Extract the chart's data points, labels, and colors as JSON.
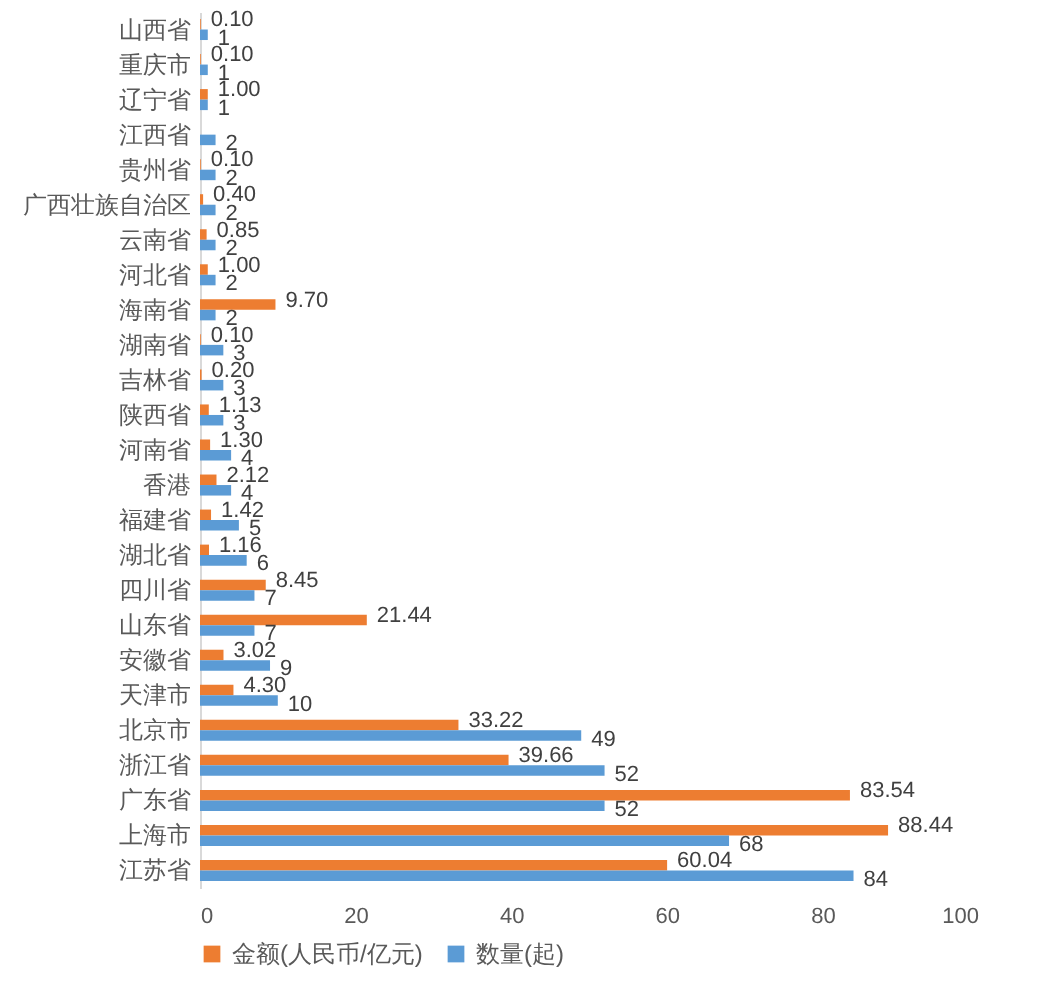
{
  "chart_data": {
    "type": "bar",
    "orientation": "horizontal",
    "categories": [
      "山西省",
      "重庆市",
      "辽宁省",
      "江西省",
      "贵州省",
      "广西壮族自治区",
      "云南省",
      "河北省",
      "海南省",
      "湖南省",
      "吉林省",
      "陕西省",
      "河南省",
      "香港",
      "福建省",
      "湖北省",
      "四川省",
      "山东省",
      "安徽省",
      "天津市",
      "北京市",
      "浙江省",
      "广东省",
      "上海市",
      "江苏省"
    ],
    "series": [
      {
        "name": "金额(人民币/亿元)",
        "color": "#ed7d31",
        "values": [
          0.1,
          0.1,
          1,
          null,
          0.1,
          0.4,
          0.85,
          1,
          9.7,
          0.1,
          0.2,
          1.13,
          1.3,
          2.12,
          1.42,
          1.16,
          8.45,
          21.44,
          3.02,
          4.3,
          33.22,
          39.66,
          83.54,
          88.44,
          60.04
        ],
        "value_labels": [
          "0.10",
          "0.10",
          "1.00",
          null,
          "0.10",
          "0.40",
          "0.85",
          "1.00",
          "9.70",
          "0.10",
          "0.20",
          "1.13",
          "1.30",
          "2.12",
          "1.42",
          "1.16",
          "8.45",
          "21.44",
          "3.02",
          "4.30",
          "33.22",
          "39.66",
          "83.54",
          "88.44",
          "60.04"
        ]
      },
      {
        "name": "数量(起)",
        "color": "#5b9bd5",
        "values": [
          1,
          1,
          1,
          2,
          2,
          2,
          2,
          2,
          2,
          3,
          3,
          3,
          4,
          4,
          5,
          6,
          7,
          7,
          9,
          10,
          49,
          52,
          52,
          68,
          84
        ],
        "value_labels": [
          "1",
          "1",
          "1",
          "2",
          "2",
          "2",
          "2",
          "2",
          "2",
          "3",
          "3",
          "3",
          "4",
          "4",
          "5",
          "6",
          "7",
          "7",
          "9",
          "10",
          "49",
          "52",
          "52",
          "68",
          "84"
        ]
      }
    ],
    "xlim": [
      0,
      100
    ],
    "xticks": [
      0,
      20,
      40,
      60,
      80,
      100
    ],
    "legend": "bottom"
  }
}
